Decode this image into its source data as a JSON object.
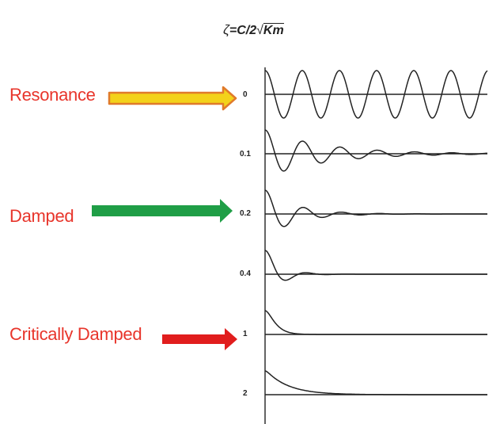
{
  "labels": {
    "resonance": "Resonance",
    "damped": "Damped",
    "critically_damped": "Critically Damped"
  },
  "formula": {
    "zeta": "ζ",
    "equals_c_over_2": "=C/2",
    "root_sign": "√",
    "radicand": "Km"
  },
  "damping_ratios": [
    "0",
    "0.1",
    "0.2",
    "0.4",
    "1",
    "2"
  ],
  "arrow_colors": {
    "resonance_fill": "#f3d21a",
    "resonance_outline": "#e07a2a",
    "damped_fill": "#1f9e46",
    "critically_damped_fill": "#e11d1d"
  },
  "label_color": "#e8352b"
}
